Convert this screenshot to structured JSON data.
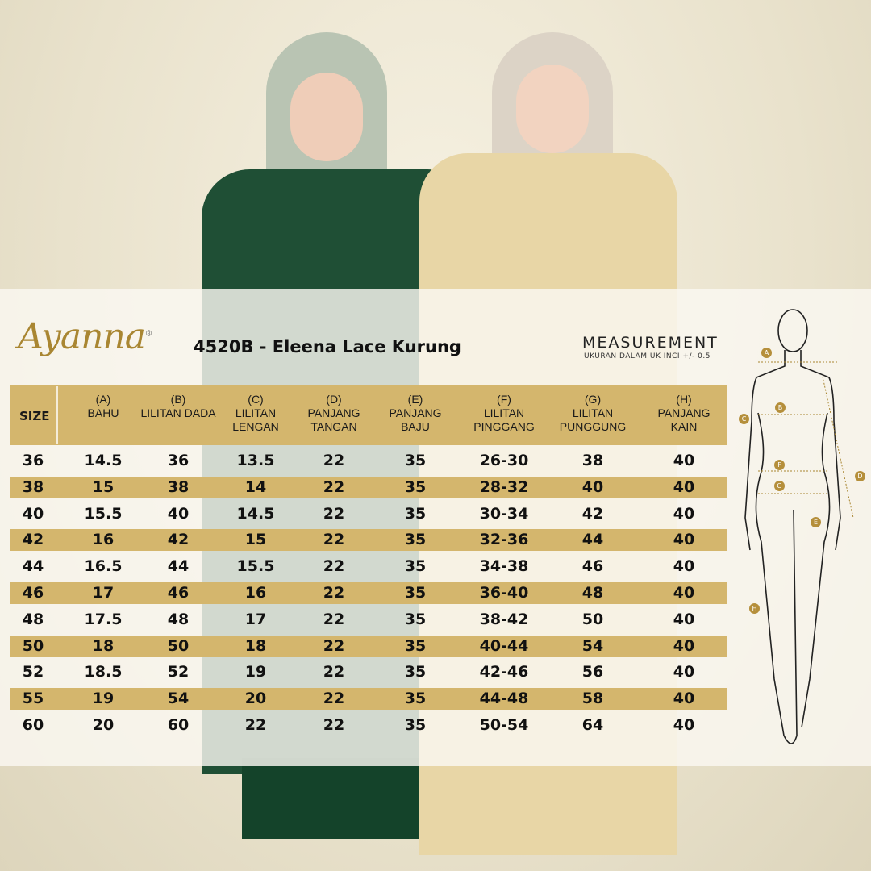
{
  "brand": {
    "logo_text": "Ayanna",
    "registered": "®"
  },
  "product_title": "4520B - Eleena Lace Kurung",
  "measurement": {
    "title": "MEASUREMENT",
    "subtitle": "UKURAN DALAM UK INCI  +/- 0.5"
  },
  "colors": {
    "gold": "#d4b66d",
    "logo": "#a98632"
  },
  "table": {
    "size_header": "SIZE",
    "columns": [
      {
        "code": "(A)",
        "label": "BAHU"
      },
      {
        "code": "(B)",
        "label": "LILITAN DADA"
      },
      {
        "code": "(C)",
        "label": "LILITAN LENGAN"
      },
      {
        "code": "(D)",
        "label": "PANJANG TANGAN"
      },
      {
        "code": "(E)",
        "label": "PANJANG BAJU"
      },
      {
        "code": "(F)",
        "label": "LILITAN PINGGANG"
      },
      {
        "code": "(G)",
        "label": "LILITAN PUNGGUNG"
      },
      {
        "code": "(H)",
        "label": "PANJANG KAIN"
      }
    ],
    "rows": [
      [
        "36",
        "14.5",
        "36",
        "13.5",
        "22",
        "35",
        "26-30",
        "38",
        "40"
      ],
      [
        "38",
        "15",
        "38",
        "14",
        "22",
        "35",
        "28-32",
        "40",
        "40"
      ],
      [
        "40",
        "15.5",
        "40",
        "14.5",
        "22",
        "35",
        "30-34",
        "42",
        "40"
      ],
      [
        "42",
        "16",
        "42",
        "15",
        "22",
        "35",
        "32-36",
        "44",
        "40"
      ],
      [
        "44",
        "16.5",
        "44",
        "15.5",
        "22",
        "35",
        "34-38",
        "46",
        "40"
      ],
      [
        "46",
        "17",
        "46",
        "16",
        "22",
        "35",
        "36-40",
        "48",
        "40"
      ],
      [
        "48",
        "17.5",
        "48",
        "17",
        "22",
        "35",
        "38-42",
        "50",
        "40"
      ],
      [
        "50",
        "18",
        "50",
        "18",
        "22",
        "35",
        "40-44",
        "54",
        "40"
      ],
      [
        "52",
        "18.5",
        "52",
        "19",
        "22",
        "35",
        "42-46",
        "56",
        "40"
      ],
      [
        "55",
        "19",
        "54",
        "20",
        "22",
        "35",
        "44-48",
        "58",
        "40"
      ],
      [
        "60",
        "20",
        "60",
        "22",
        "22",
        "35",
        "50-54",
        "64",
        "40"
      ]
    ]
  },
  "diagram_markers": [
    "A",
    "B",
    "C",
    "D",
    "E",
    "F",
    "G",
    "H"
  ]
}
